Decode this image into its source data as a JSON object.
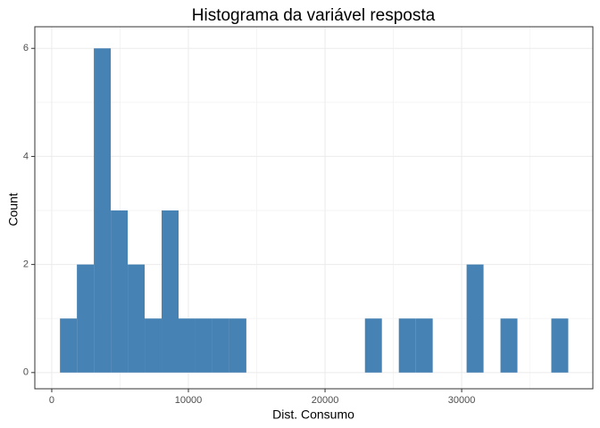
{
  "chart_data": {
    "type": "histogram",
    "title": "Histograma da variável resposta",
    "x_label": "Dist. Consumo",
    "y_label": "Count",
    "bins": [
      600,
      1840,
      3080,
      4320,
      5560,
      6800,
      8040,
      9280,
      10520,
      11760,
      13000,
      14240,
      15480,
      16720,
      17960,
      19200,
      20440,
      21680,
      22920,
      24160,
      25400,
      26640,
      27880,
      29120,
      30360,
      31600,
      32840,
      34080,
      35320,
      36560,
      37800
    ],
    "values": [
      1,
      2,
      6,
      3,
      2,
      1,
      3,
      1,
      1,
      1,
      1,
      0,
      0,
      0,
      0,
      0,
      0,
      0,
      1,
      0,
      1,
      1,
      0,
      0,
      2,
      0,
      1,
      0,
      0,
      1
    ],
    "color": "#4682b4",
    "xlim": [
      -1240,
      39600
    ],
    "xticks": [
      0,
      10000,
      20000,
      30000
    ],
    "ylim": [
      -0.3,
      6.4
    ],
    "yticks": [
      0,
      2,
      4,
      6
    ],
    "grid": true
  }
}
